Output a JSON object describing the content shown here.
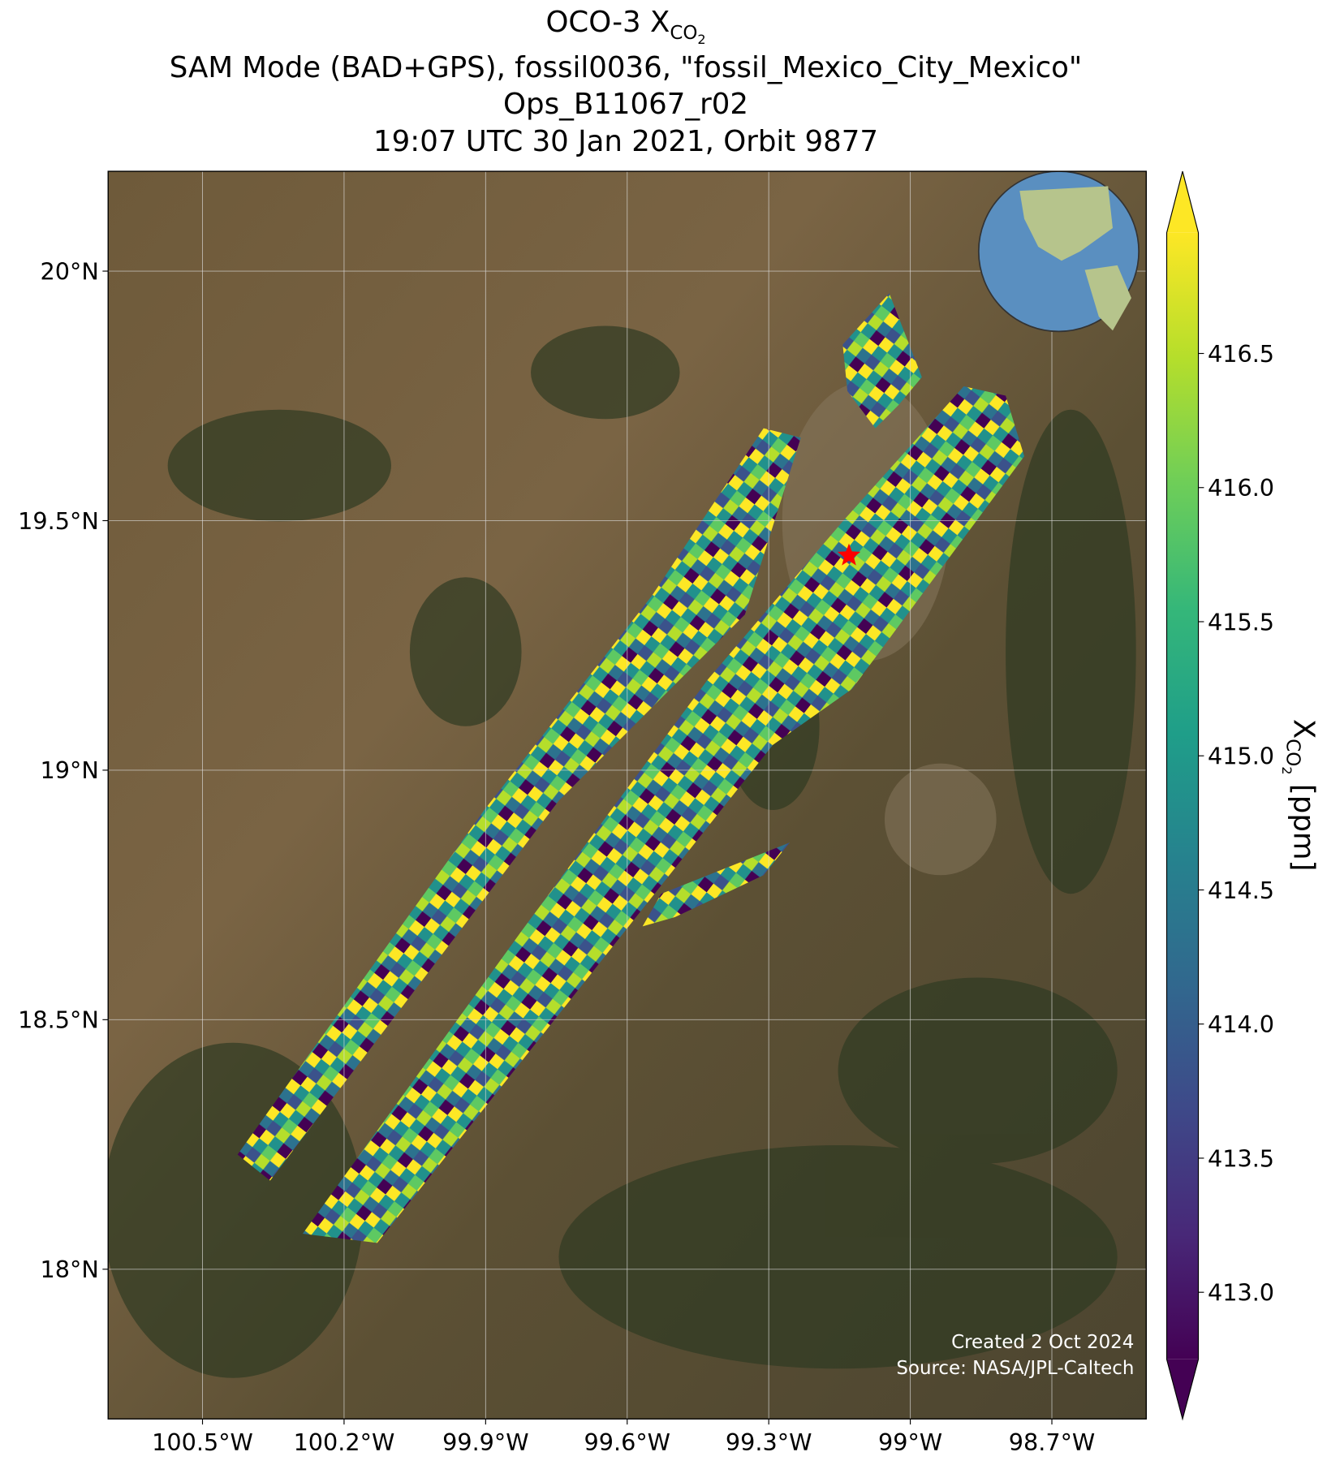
{
  "chart_data": {
    "type": "map",
    "title": {
      "line1": {
        "text": "OCO-3 X",
        "sub": "CO",
        "subsub": "2"
      },
      "line2": "SAM Mode (BAD+GPS), fossil0036, \"fossil_Mexico_City_Mexico\"",
      "line3": "Ops_B11067_r02",
      "line4": "19:07 UTC 30 Jan 2021, Orbit 9877"
    },
    "xlim": [
      -100.7,
      -98.5
    ],
    "ylim": [
      17.7,
      20.2
    ],
    "xticks": [
      {
        "value": -100.5,
        "label": "100.5°W"
      },
      {
        "value": -100.2,
        "label": "100.2°W"
      },
      {
        "value": -99.9,
        "label": "99.9°W"
      },
      {
        "value": -99.6,
        "label": "99.6°W"
      },
      {
        "value": -99.3,
        "label": "99.3°W"
      },
      {
        "value": -99,
        "label": "99°W"
      },
      {
        "value": -98.7,
        "label": "98.7°W"
      }
    ],
    "yticks": [
      {
        "value": 18,
        "label": "18°N"
      },
      {
        "value": 18.5,
        "label": "18.5°N"
      },
      {
        "value": 19,
        "label": "19°N"
      },
      {
        "value": 19.5,
        "label": "19.5°N"
      },
      {
        "value": 20,
        "label": "20°N"
      }
    ],
    "grid": true,
    "site": {
      "lon": -99.13,
      "lat": 19.43,
      "color": "#ff0000"
    },
    "colorbar": {
      "clim": [
        412.75,
        416.95
      ],
      "ticks": [
        {
          "value": 413,
          "label": "413.0"
        },
        {
          "value": 413.5,
          "label": "413.5"
        },
        {
          "value": 414,
          "label": "414.0"
        },
        {
          "value": 414.5,
          "label": "414.5"
        },
        {
          "value": 415,
          "label": "415.0"
        },
        {
          "value": 415.5,
          "label": "415.5"
        },
        {
          "value": 416,
          "label": "416.0"
        },
        {
          "value": 416.5,
          "label": "416.5"
        }
      ],
      "label": {
        "text": "X",
        "sub": "CO",
        "subsub": "2",
        "unit": "[ppm]"
      }
    },
    "credits": [
      "Created 2 Oct 2024",
      "Source: NASA/JPL-Caltech"
    ]
  }
}
